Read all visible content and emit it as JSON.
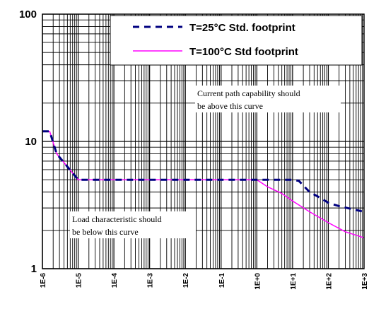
{
  "chart_data": {
    "type": "line",
    "x_scale": "log",
    "y_scale": "log",
    "xlim": [
      1e-06,
      1000
    ],
    "ylim": [
      1,
      100
    ],
    "grid": true,
    "legend_position": "top-right",
    "x_tick_labels": [
      "1E-6",
      "1E-5",
      "1E-4",
      "1E-3",
      "1E-2",
      "1E-1",
      "1E+0",
      "1E+1",
      "1E+2",
      "1E+3"
    ],
    "y_tick_labels": [
      "1",
      "10",
      "100"
    ],
    "series": [
      {
        "name": "T=25°C  Std. footprint",
        "color": "#000080",
        "style": "dashed",
        "x": [
          1e-06,
          1.6e-06,
          2.5e-06,
          1e-05,
          0.1,
          1,
          10,
          15,
          20,
          30,
          50,
          100,
          200,
          1000
        ],
        "y": [
          12,
          12,
          8,
          5,
          5,
          5,
          5,
          4.9,
          4.5,
          4,
          3.7,
          3.3,
          3.1,
          2.8
        ]
      },
      {
        "name": "T=100°C Std footprint",
        "color": "#ff00ff",
        "style": "solid",
        "x": [
          1e-06,
          1.6e-06,
          2.5e-06,
          1e-05,
          0.1,
          1,
          2,
          5,
          10,
          30,
          100,
          300,
          1000
        ],
        "y": [
          12,
          12,
          8,
          5,
          5,
          5,
          4.4,
          3.9,
          3.4,
          2.8,
          2.3,
          1.95,
          1.75
        ]
      }
    ],
    "annotations": [
      {
        "lines": [
          "Current path capability should",
          "be above this curve"
        ]
      },
      {
        "lines": [
          "Load characteristic should",
          "be below this curve"
        ]
      }
    ]
  }
}
